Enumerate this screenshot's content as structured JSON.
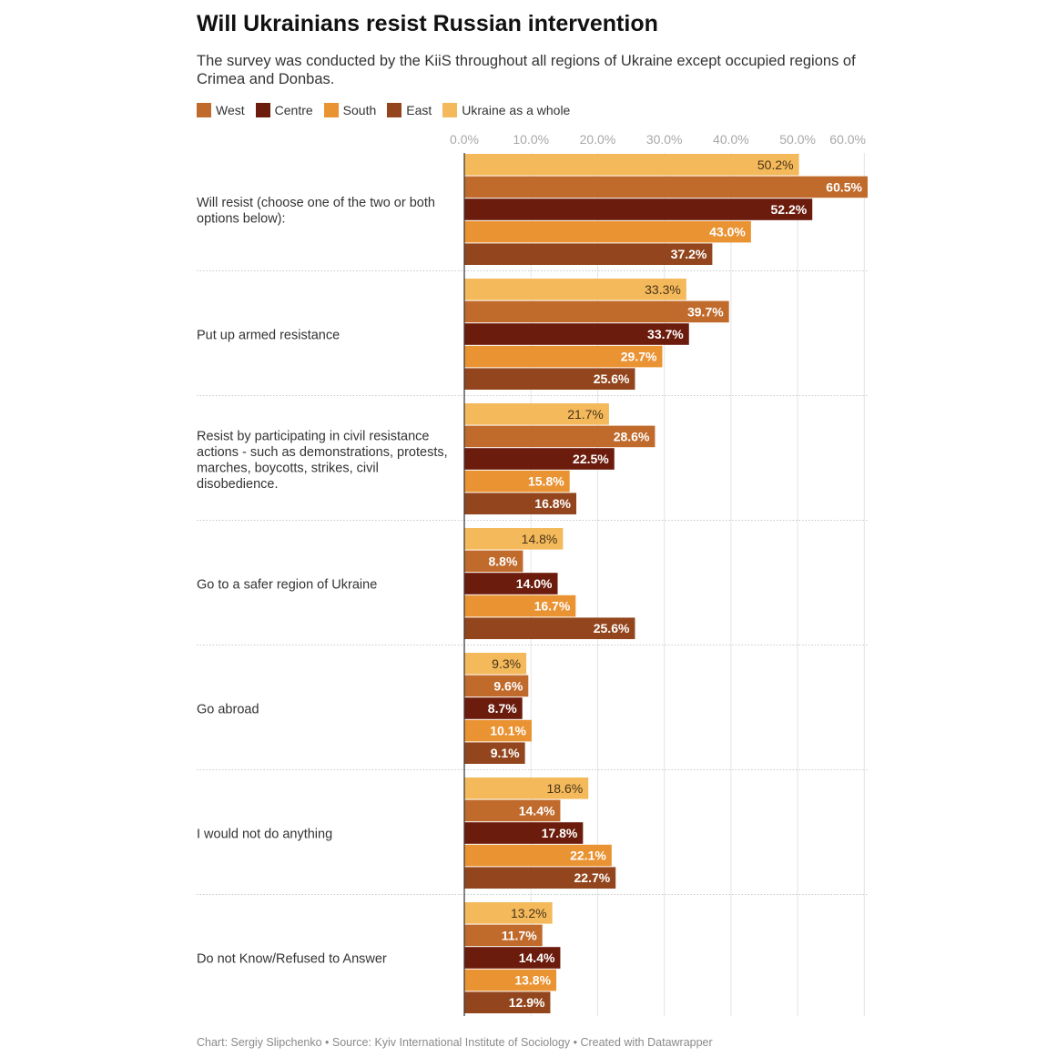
{
  "chart_data": {
    "type": "bar",
    "orientation": "horizontal",
    "title": "Will Ukrainians resist Russian intervention",
    "subtitle": "The survey was conducted by the KiiS throughout all regions of Ukraine except occupied regions of Crimea and Donbas.",
    "footer": "Chart: Sergiy Slipchenko • Source: Kyiv International Institute of Sociology • Created with Datawrapper",
    "xlim": [
      0,
      60.5
    ],
    "ticks": [
      {
        "value": 0,
        "label": "0.0%"
      },
      {
        "value": 10,
        "label": "10.0%"
      },
      {
        "value": 20,
        "label": "20.0%"
      },
      {
        "value": 30,
        "label": "30.0%"
      },
      {
        "value": 40,
        "label": "40.0%"
      },
      {
        "value": 50,
        "label": "50.0%"
      },
      {
        "value": 60,
        "label": "60.0%"
      }
    ],
    "legend": [
      {
        "name": "West",
        "color": "#c06a2b"
      },
      {
        "name": "Centre",
        "color": "#6b1c0c"
      },
      {
        "name": "South",
        "color": "#ea9333"
      },
      {
        "name": "East",
        "color": "#93461d"
      },
      {
        "name": "Ukraine as a whole",
        "color": "#f3b95b"
      }
    ],
    "bar_order": [
      "Ukraine as a whole",
      "West",
      "Centre",
      "South",
      "East"
    ],
    "series": [
      {
        "name": "Ukraine as a whole",
        "color": "#f3b95b",
        "label_color": "#4a3418",
        "values": [
          50.2,
          33.3,
          21.7,
          14.8,
          9.3,
          18.6,
          13.2
        ],
        "labels": [
          "50.2%",
          "33.3%",
          "21.7%",
          "14.8%",
          "9.3%",
          "18.6%",
          "13.2%"
        ]
      },
      {
        "name": "West",
        "color": "#c06a2b",
        "label_color": "#ffffff",
        "values": [
          60.5,
          39.7,
          28.6,
          8.8,
          9.6,
          14.4,
          11.7
        ],
        "labels": [
          "60.5%",
          "39.7%",
          "28.6%",
          "8.8%",
          "9.6%",
          "14.4%",
          "11.7%"
        ]
      },
      {
        "name": "Centre",
        "color": "#6b1c0c",
        "label_color": "#ffffff",
        "values": [
          52.2,
          33.7,
          22.5,
          14.0,
          8.7,
          17.8,
          14.4
        ],
        "labels": [
          "52.2%",
          "33.7%",
          "22.5%",
          "14.0%",
          "8.7%",
          "17.8%",
          "14.4%"
        ]
      },
      {
        "name": "South",
        "color": "#ea9333",
        "label_color": "#ffffff",
        "values": [
          43.0,
          29.7,
          15.8,
          16.7,
          10.1,
          22.1,
          13.8
        ],
        "labels": [
          "43.0%",
          "29.7%",
          "15.8%",
          "16.7%",
          "10.1%",
          "22.1%",
          "13.8%"
        ]
      },
      {
        "name": "East",
        "color": "#93461d",
        "label_color": "#ffffff",
        "values": [
          37.2,
          25.6,
          16.8,
          25.6,
          9.1,
          22.7,
          12.9
        ],
        "labels": [
          "37.2%",
          "25.6%",
          "16.8%",
          "25.6%",
          "9.1%",
          "22.7%",
          "12.9%"
        ]
      }
    ],
    "categories": [
      {
        "lines": [
          "Will resist (choose one of the two or both",
          "options below):"
        ]
      },
      {
        "lines": [
          "Put up armed resistance"
        ]
      },
      {
        "lines": [
          "Resist by participating in civil resistance",
          "actions - such as demonstrations, protests,",
          "marches, boycotts, strikes, civil",
          "disobedience."
        ]
      },
      {
        "lines": [
          "Go to a safer region of Ukraine"
        ]
      },
      {
        "lines": [
          "Go abroad"
        ]
      },
      {
        "lines": [
          "I would not do anything"
        ]
      },
      {
        "lines": [
          "Do not Know/Refused to Answer"
        ]
      }
    ]
  }
}
